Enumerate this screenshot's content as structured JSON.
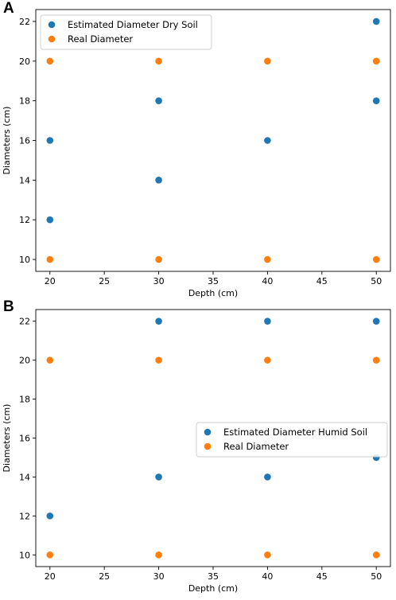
{
  "panels": [
    {
      "letter": "A"
    },
    {
      "letter": "B"
    }
  ],
  "chart_data": [
    {
      "type": "scatter",
      "xlabel": "Depth (cm)",
      "ylabel": "Diameters (cm)",
      "xlim": [
        18.7,
        51.3
      ],
      "ylim": [
        9.4,
        22.6
      ],
      "xticks": [
        20,
        25,
        30,
        35,
        40,
        45,
        50
      ],
      "yticks": [
        10,
        12,
        14,
        16,
        18,
        20,
        22
      ],
      "grid": false,
      "legend_position": "upper-left",
      "series": [
        {
          "name": "Estimated Diameter Dry Soil",
          "color": "#1f77b4",
          "points": [
            [
              20,
              12
            ],
            [
              20,
              16
            ],
            [
              30,
              14
            ],
            [
              30,
              18
            ],
            [
              40,
              16
            ],
            [
              50,
              18
            ],
            [
              50,
              22
            ]
          ]
        },
        {
          "name": "Real Diameter",
          "color": "#ff7f0e",
          "points": [
            [
              20,
              10
            ],
            [
              20,
              20
            ],
            [
              30,
              10
            ],
            [
              30,
              20
            ],
            [
              40,
              10
            ],
            [
              40,
              20
            ],
            [
              50,
              10
            ],
            [
              50,
              20
            ]
          ]
        }
      ]
    },
    {
      "type": "scatter",
      "xlabel": "Depth (cm)",
      "ylabel": "Diameters (cm)",
      "xlim": [
        18.7,
        51.3
      ],
      "ylim": [
        9.4,
        22.6
      ],
      "xticks": [
        20,
        25,
        30,
        35,
        40,
        45,
        50
      ],
      "yticks": [
        10,
        12,
        14,
        16,
        18,
        20,
        22
      ],
      "grid": false,
      "legend_position": "center-right",
      "series": [
        {
          "name": "Estimated Diameter Humid Soil",
          "color": "#1f77b4",
          "points": [
            [
              20,
              12
            ],
            [
              30,
              14
            ],
            [
              30,
              22
            ],
            [
              40,
              14
            ],
            [
              40,
              22
            ],
            [
              50,
              15
            ],
            [
              50,
              22
            ]
          ]
        },
        {
          "name": "Real Diameter",
          "color": "#ff7f0e",
          "points": [
            [
              20,
              10
            ],
            [
              20,
              20
            ],
            [
              30,
              10
            ],
            [
              30,
              20
            ],
            [
              40,
              10
            ],
            [
              40,
              20
            ],
            [
              50,
              10
            ],
            [
              50,
              20
            ]
          ]
        }
      ]
    }
  ]
}
